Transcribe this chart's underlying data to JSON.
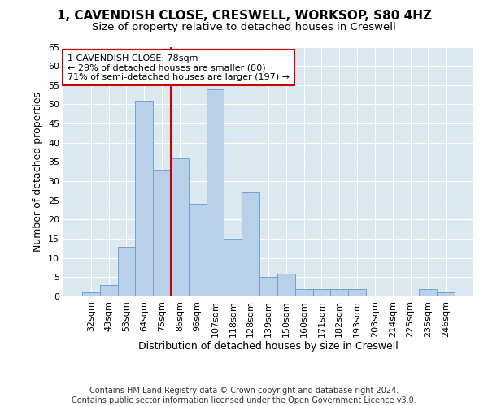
{
  "title1": "1, CAVENDISH CLOSE, CRESWELL, WORKSOP, S80 4HZ",
  "title2": "Size of property relative to detached houses in Creswell",
  "xlabel": "Distribution of detached houses by size in Creswell",
  "ylabel": "Number of detached properties",
  "categories": [
    "32sqm",
    "43sqm",
    "53sqm",
    "64sqm",
    "75sqm",
    "86sqm",
    "96sqm",
    "107sqm",
    "118sqm",
    "128sqm",
    "139sqm",
    "150sqm",
    "160sqm",
    "171sqm",
    "182sqm",
    "193sqm",
    "203sqm",
    "214sqm",
    "225sqm",
    "235sqm",
    "246sqm"
  ],
  "values": [
    1,
    3,
    13,
    51,
    33,
    36,
    24,
    54,
    15,
    27,
    5,
    6,
    2,
    2,
    2,
    2,
    0,
    0,
    0,
    2,
    1
  ],
  "bar_color": "#b8d0e8",
  "bar_edgecolor": "#6699cc",
  "vline_x": 4.5,
  "vline_color": "#cc0000",
  "annotation_text": "1 CAVENDISH CLOSE: 78sqm\n← 29% of detached houses are smaller (80)\n71% of semi-detached houses are larger (197) →",
  "annotation_box_color": "#ffffff",
  "annotation_box_edgecolor": "#cc0000",
  "ylim": [
    0,
    65
  ],
  "yticks": [
    0,
    5,
    10,
    15,
    20,
    25,
    30,
    35,
    40,
    45,
    50,
    55,
    60,
    65
  ],
  "plot_bg_color": "#dce8f0",
  "footer": "Contains HM Land Registry data © Crown copyright and database right 2024.\nContains public sector information licensed under the Open Government Licence v3.0.",
  "title1_fontsize": 11,
  "title2_fontsize": 9.5,
  "xlabel_fontsize": 9,
  "ylabel_fontsize": 9,
  "tick_fontsize": 8,
  "footer_fontsize": 7,
  "ann_fontsize": 8
}
